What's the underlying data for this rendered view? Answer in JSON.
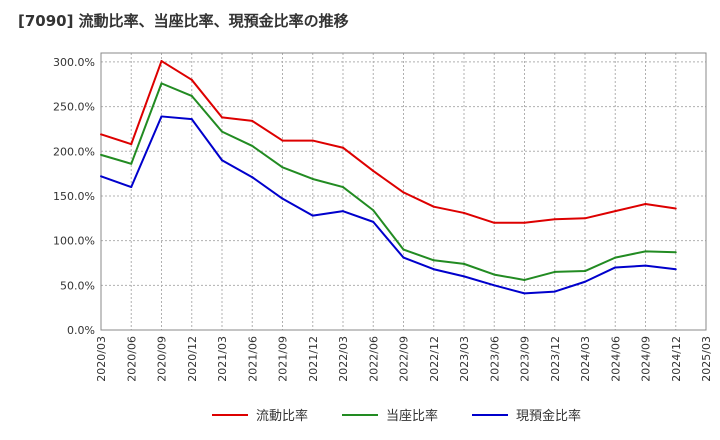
{
  "chart_data": {
    "type": "line",
    "title": "[7090]  流動比率、当座比率、現預金比率の推移",
    "xlabel": "",
    "ylabel": "",
    "ylim": [
      0,
      310
    ],
    "yticks": [
      0,
      50,
      100,
      150,
      200,
      250,
      300
    ],
    "ytick_labels": [
      "0.0%",
      "50.0%",
      "100.0%",
      "150.0%",
      "200.0%",
      "250.0%",
      "300.0%"
    ],
    "grid": true,
    "legend_position": "bottom",
    "x_tick_labels": [
      "2020/03",
      "2020/06",
      "2020/09",
      "2020/12",
      "2021/03",
      "2021/06",
      "2021/09",
      "2021/12",
      "2022/03",
      "2022/06",
      "2022/09",
      "2022/12",
      "2023/03",
      "2023/06",
      "2023/09",
      "2023/12",
      "2024/03",
      "2024/06",
      "2024/09",
      "2024/12",
      "2025/03"
    ],
    "categories": [
      "2020/03",
      "2020/06",
      "2020/09",
      "2020/12",
      "2021/03",
      "2021/06",
      "2021/09",
      "2021/12",
      "2022/03",
      "2022/06",
      "2022/09",
      "2022/12",
      "2023/03",
      "2023/06",
      "2023/09",
      "2023/12",
      "2024/03",
      "2024/06",
      "2024/09",
      "2024/12"
    ],
    "series": [
      {
        "name": "流動比率",
        "color": "#dd0000",
        "values": [
          219,
          208,
          301,
          280,
          238,
          234,
          212,
          212,
          204,
          178,
          154,
          138,
          131,
          120,
          120,
          124,
          125,
          133,
          141,
          136
        ]
      },
      {
        "name": "当座比率",
        "color": "#228b22",
        "values": [
          196,
          186,
          276,
          262,
          222,
          206,
          182,
          169,
          160,
          134,
          90,
          78,
          74,
          62,
          56,
          65,
          66,
          81,
          88,
          87
        ]
      },
      {
        "name": "現預金比率",
        "color": "#0000cc",
        "values": [
          172,
          160,
          239,
          236,
          190,
          171,
          147,
          128,
          133,
          121,
          81,
          68,
          60,
          50,
          41,
          43,
          54,
          70,
          72,
          68
        ]
      }
    ]
  }
}
